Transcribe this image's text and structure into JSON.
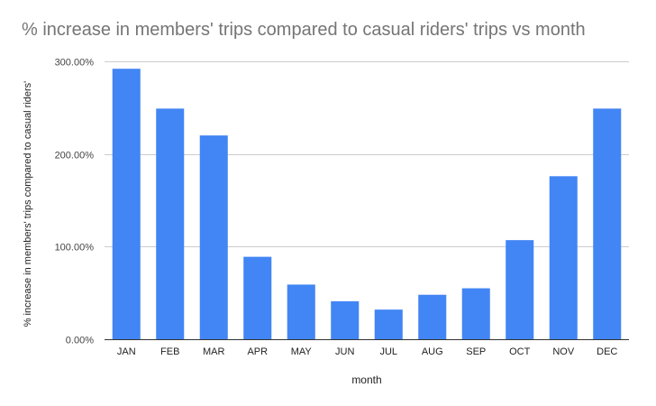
{
  "chart_data": {
    "type": "bar",
    "title": "% increase in members' trips compared to casual riders' trips vs month",
    "xlabel": "month",
    "ylabel": "% increase in members' trips compared to casual riders'",
    "categories": [
      "JAN",
      "FEB",
      "MAR",
      "APR",
      "MAY",
      "JUN",
      "JUL",
      "AUG",
      "SEP",
      "OCT",
      "NOV",
      "DEC"
    ],
    "series": [
      {
        "values": [
          292,
          249,
          220,
          89,
          59,
          41,
          32,
          48,
          55,
          107,
          176,
          249
        ],
        "color": "#4285f4"
      }
    ],
    "ylim": [
      0,
      300
    ],
    "yticks": [
      0,
      100,
      200,
      300
    ],
    "ytick_labels": [
      "0.00%",
      "100.00%",
      "200.00%",
      "300.00%"
    ],
    "grid": true,
    "legend": "none"
  }
}
